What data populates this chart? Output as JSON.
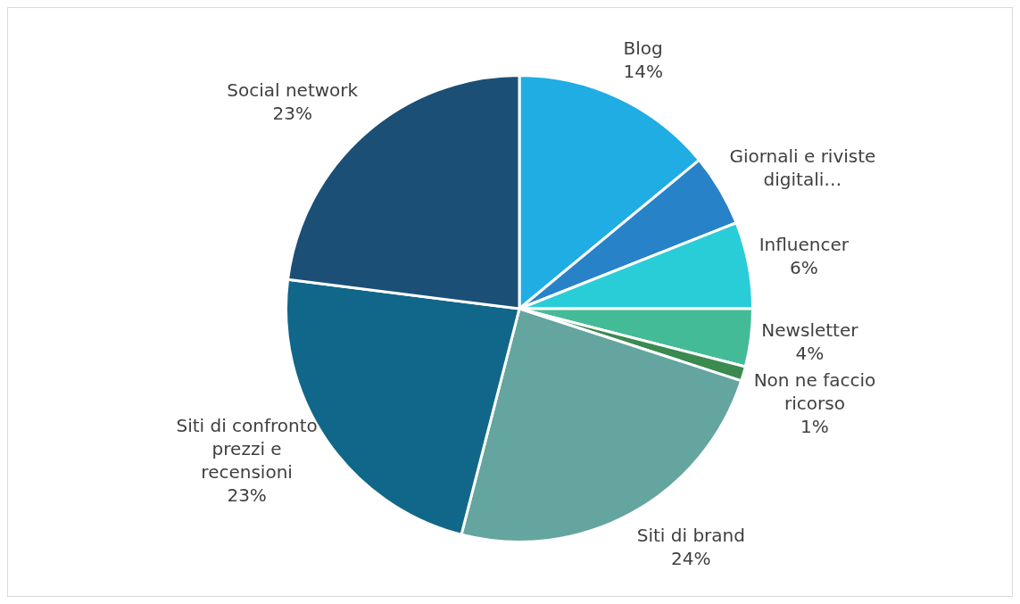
{
  "chart_data": {
    "type": "pie",
    "categories": [
      "Blog",
      "Giornali e riviste digitali…",
      "Influencer",
      "Newsletter",
      "Non ne faccio ricorso",
      "Siti di brand",
      "Siti di confronto prezzi e recensioni",
      "Social network"
    ],
    "values": [
      14,
      5,
      6,
      4,
      1,
      24,
      23,
      23
    ],
    "value_labels": [
      "14%",
      null,
      "6%",
      "4%",
      "1%",
      "24%",
      "23%",
      "23%"
    ],
    "colors": [
      "#1fade3",
      "#2882c8",
      "#29cdd8",
      "#43bb97",
      "#3b8a4f",
      "#64a5a0",
      "#116789",
      "#1b4f76"
    ],
    "legend": false
  }
}
